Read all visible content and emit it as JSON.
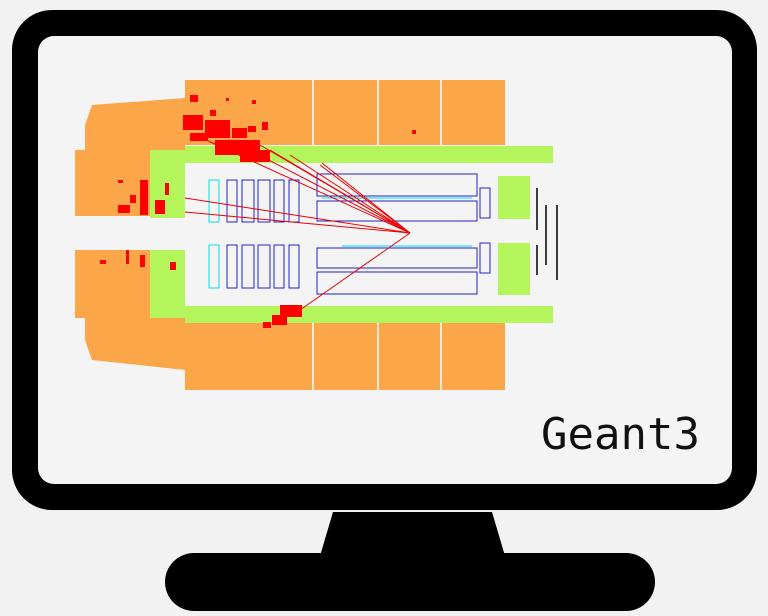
{
  "label": "Geant3"
}
